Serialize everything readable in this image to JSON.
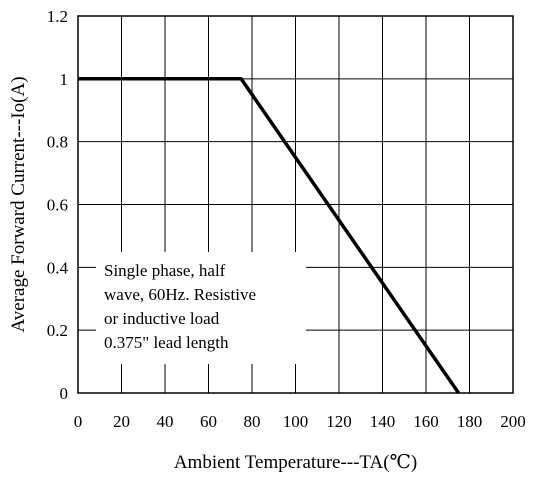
{
  "chart_data": {
    "type": "line",
    "title": "",
    "xlabel": "Ambient Temperature---TA(℃)",
    "ylabel": "Average Forward Current---Io(A)",
    "xlim": [
      0,
      200
    ],
    "ylim": [
      0,
      1.2
    ],
    "x_ticks": [
      "0",
      "20",
      "40",
      "60",
      "80",
      "100",
      "120",
      "140",
      "160",
      "180",
      "200"
    ],
    "y_ticks": [
      "0",
      "0.2",
      "0.4",
      "0.6",
      "0.8",
      "1",
      "1.2"
    ],
    "grid": true,
    "legend": "none",
    "series": [
      {
        "x": [
          0,
          75,
          175
        ],
        "y": [
          1,
          1,
          0
        ]
      }
    ],
    "annotation": [
      "Single phase, half",
      "wave, 60Hz.  Resistive",
      "or inductive load",
      "0.375\" lead length"
    ]
  }
}
